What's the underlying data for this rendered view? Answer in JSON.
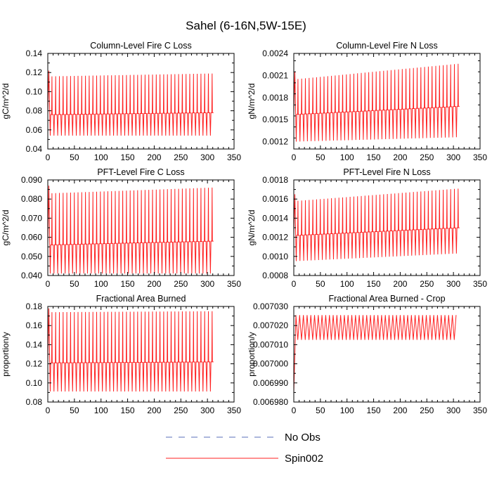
{
  "figure": {
    "title": "Sahel (6-16N,5W-15E)"
  },
  "colors": {
    "no_obs": "#5a6fb8",
    "spin002": "#ff2020"
  },
  "legend": {
    "placement": "bottom-center",
    "entries": [
      {
        "name": "No Obs",
        "style": "dashed",
        "color_key": "no_obs"
      },
      {
        "name": "Spin002",
        "style": "solid",
        "color_key": "spin002"
      }
    ]
  },
  "chart_data": [
    {
      "type": "line",
      "title": "Column-Level Fire C Loss",
      "ylabel": "gC/m^2/d",
      "xlim": [
        0,
        350
      ],
      "ylim": [
        0.04,
        0.14
      ],
      "xticks": [
        0,
        50,
        100,
        150,
        200,
        250,
        300,
        350
      ],
      "yticks": [
        0.04,
        0.06,
        0.08,
        0.1,
        0.12,
        0.14
      ],
      "ytick_labels": [
        "0.04",
        "0.06",
        "0.08",
        "0.10",
        "0.12",
        "0.14"
      ],
      "series": [
        {
          "name": "Spin002",
          "color_key": "spin002",
          "pattern": "annual-cycle",
          "x_end": 307,
          "period": 7,
          "initial_peak": 0.122,
          "peak_start": 0.116,
          "peak_end": 0.119,
          "trough_start": 0.054,
          "trough_end": 0.054,
          "mid_start": 0.076,
          "mid_end": 0.078
        }
      ]
    },
    {
      "type": "line",
      "title": "Column-Level Fire N Loss",
      "ylabel": "gN/m^2/d",
      "xlim": [
        0,
        350
      ],
      "ylim": [
        0.0011,
        0.0024
      ],
      "xticks": [
        0,
        50,
        100,
        150,
        200,
        250,
        300,
        350
      ],
      "yticks": [
        0.0012,
        0.0015,
        0.0018,
        0.0021,
        0.0024
      ],
      "ytick_labels": [
        "0.0012",
        "0.0015",
        "0.0018",
        "0.0021",
        "0.0024"
      ],
      "series": [
        {
          "name": "Spin002",
          "color_key": "spin002",
          "pattern": "annual-cycle",
          "x_end": 307,
          "period": 7,
          "initial_peak": 0.00215,
          "peak_start": 0.00205,
          "peak_end": 0.00226,
          "trough_start": 0.0012,
          "trough_end": 0.00126,
          "mid_start": 0.00157,
          "mid_end": 0.00168
        }
      ]
    },
    {
      "type": "line",
      "title": "PFT-Level Fire C Loss",
      "ylabel": "gC/m^2/d",
      "xlim": [
        0,
        350
      ],
      "ylim": [
        0.04,
        0.09
      ],
      "xticks": [
        0,
        50,
        100,
        150,
        200,
        250,
        300,
        350
      ],
      "yticks": [
        0.04,
        0.05,
        0.06,
        0.07,
        0.08,
        0.09
      ],
      "ytick_labels": [
        "0.040",
        "0.050",
        "0.060",
        "0.070",
        "0.080",
        "0.090"
      ],
      "series": [
        {
          "name": "Spin002",
          "color_key": "spin002",
          "pattern": "annual-cycle",
          "x_end": 307,
          "period": 7,
          "initial_peak": 0.087,
          "peak_start": 0.083,
          "peak_end": 0.086,
          "trough_start": 0.041,
          "trough_end": 0.041,
          "mid_start": 0.056,
          "mid_end": 0.058
        }
      ]
    },
    {
      "type": "line",
      "title": "PFT-Level Fire N Loss",
      "ylabel": "gN/m^2/d",
      "xlim": [
        0,
        350
      ],
      "ylim": [
        0.0008,
        0.0018
      ],
      "xticks": [
        0,
        50,
        100,
        150,
        200,
        250,
        300,
        350
      ],
      "yticks": [
        0.0008,
        0.001,
        0.0012,
        0.0014,
        0.0016,
        0.0018
      ],
      "ytick_labels": [
        "0.0008",
        "0.0010",
        "0.0012",
        "0.0014",
        "0.0016",
        "0.0018"
      ],
      "series": [
        {
          "name": "Spin002",
          "color_key": "spin002",
          "pattern": "annual-cycle",
          "x_end": 307,
          "period": 7,
          "initial_peak": 0.00165,
          "peak_start": 0.00158,
          "peak_end": 0.00171,
          "trough_start": 0.00095,
          "trough_end": 0.00103,
          "mid_start": 0.00122,
          "mid_end": 0.0013
        }
      ]
    },
    {
      "type": "line",
      "title": "Fractional Area Burned",
      "ylabel": "proportion/y",
      "xlim": [
        0,
        350
      ],
      "ylim": [
        0.08,
        0.18
      ],
      "xticks": [
        0,
        50,
        100,
        150,
        200,
        250,
        300,
        350
      ],
      "yticks": [
        0.08,
        0.1,
        0.12,
        0.14,
        0.16,
        0.18
      ],
      "ytick_labels": [
        "0.08",
        "0.10",
        "0.12",
        "0.14",
        "0.16",
        "0.18"
      ],
      "series": [
        {
          "name": "Spin002",
          "color_key": "spin002",
          "pattern": "annual-cycle",
          "x_end": 307,
          "period": 7,
          "initial_peak": 0.178,
          "peak_start": 0.174,
          "peak_end": 0.175,
          "trough_start": 0.091,
          "trough_end": 0.091,
          "mid_start": 0.121,
          "mid_end": 0.122
        }
      ]
    },
    {
      "type": "line",
      "title": "Fractional Area Burned - Crop",
      "ylabel": "proportion/y",
      "xlim": [
        0,
        350
      ],
      "ylim": [
        0.00698,
        0.00703
      ],
      "xticks": [
        0,
        50,
        100,
        150,
        200,
        250,
        300,
        350
      ],
      "yticks": [
        0.00698,
        0.00699,
        0.007,
        0.00701,
        0.00702,
        0.00703
      ],
      "ytick_labels": [
        "0.006980",
        "0.006990",
        "0.007000",
        "0.007010",
        "0.007020",
        "0.007030"
      ],
      "series": [
        {
          "name": "Spin002",
          "color_key": "spin002",
          "pattern": "spinup-oscillation",
          "x_end": 307,
          "period": 7,
          "start_value": 0.006985,
          "rise_end_x": 4,
          "peak": 0.0070255,
          "trough": 0.0070125
        }
      ]
    }
  ]
}
